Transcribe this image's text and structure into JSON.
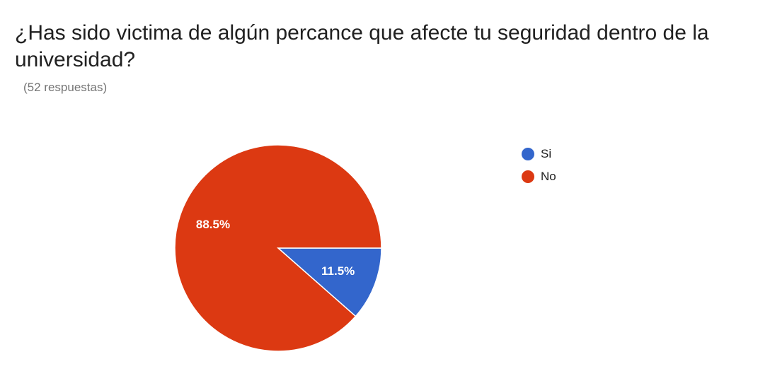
{
  "question": {
    "title": "¿Has sido victima de algún percance que afecte tu seguridad dentro de la universidad?",
    "response_count": "(52 respuestas)"
  },
  "chart_data": {
    "type": "pie",
    "title": "¿Has sido victima de algún percance que afecte tu seguridad dentro de la universidad?",
    "categories": [
      "Si",
      "No"
    ],
    "values": [
      11.5,
      88.5
    ],
    "labels": [
      "11.5%",
      "88.5%"
    ],
    "colors": [
      "#3366cc",
      "#dc3912"
    ],
    "legend_position": "right"
  }
}
